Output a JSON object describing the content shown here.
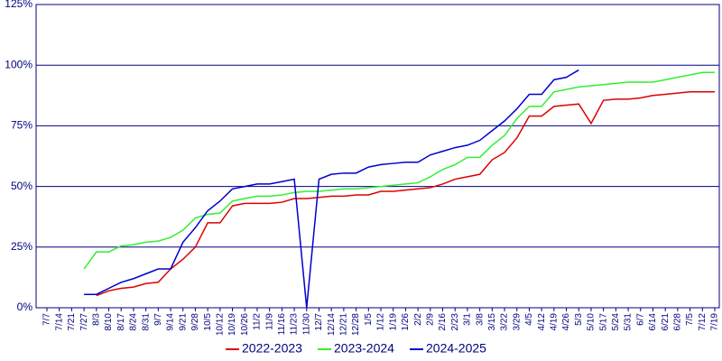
{
  "chart_data": {
    "type": "line",
    "categories": [
      "7/7",
      "7/14",
      "7/21",
      "7/27",
      "8/3",
      "8/10",
      "8/17",
      "8/24",
      "8/31",
      "9/7",
      "9/14",
      "9/21",
      "9/28",
      "10/5",
      "10/12",
      "10/19",
      "10/26",
      "11/2",
      "11/9",
      "11/16",
      "11/23",
      "11/30",
      "12/7",
      "12/14",
      "12/21",
      "12/28",
      "1/5",
      "1/12",
      "1/19",
      "1/26",
      "2/2",
      "2/9",
      "2/16",
      "2/23",
      "3/1",
      "3/8",
      "3/15",
      "3/22",
      "3/29",
      "4/5",
      "4/12",
      "4/19",
      "4/26",
      "5/3",
      "5/10",
      "5/17",
      "5/24",
      "5/31",
      "6/7",
      "6/14",
      "6/21",
      "6/28",
      "7/5",
      "7/12",
      "7/19"
    ],
    "series": [
      {
        "name": "2022-2023",
        "color": "#dd0000",
        "values": [
          null,
          null,
          null,
          null,
          5,
          7,
          8,
          8.5,
          10,
          10.5,
          16,
          20,
          25,
          35,
          35,
          42,
          43,
          43,
          43,
          43.5,
          45,
          45,
          45.5,
          46,
          46,
          46.5,
          46.5,
          48,
          48,
          48.5,
          49,
          49.5,
          51,
          53,
          54,
          55,
          61,
          64,
          70,
          79,
          79,
          83,
          83.5,
          84,
          76,
          85.5,
          86,
          86,
          86.5,
          87.5,
          88,
          88.5,
          89,
          89,
          89
        ]
      },
      {
        "name": "2023-2024",
        "color": "#33ee33",
        "values": [
          null,
          null,
          null,
          16,
          23,
          23,
          25.5,
          26,
          27,
          27.5,
          29,
          32,
          37,
          38.5,
          39,
          44,
          45,
          46,
          46,
          46.5,
          47.5,
          48,
          48,
          48.5,
          49,
          49,
          49.5,
          50,
          50.5,
          51,
          51.5,
          54,
          57,
          59,
          62,
          62,
          67,
          71,
          78,
          83,
          83,
          89,
          90,
          91,
          91.5,
          92,
          92.5,
          93,
          93,
          93,
          94,
          95,
          96,
          97,
          97
        ]
      },
      {
        "name": "2024-2025",
        "color": "#0000cc",
        "values": [
          null,
          null,
          null,
          5.5,
          5.5,
          8,
          10.5,
          12,
          14,
          16,
          16,
          27,
          33,
          40,
          44,
          49,
          50,
          51,
          51,
          52,
          53,
          0,
          53,
          55,
          55.5,
          55.5,
          58,
          59,
          59.5,
          60,
          60,
          63,
          64.5,
          66,
          67,
          69,
          73,
          77,
          82,
          88,
          88,
          94,
          95,
          98,
          null,
          null,
          null,
          null,
          null,
          null,
          null,
          null,
          null,
          null,
          null
        ]
      }
    ],
    "ylim": [
      0,
      125
    ],
    "yticks": [
      {
        "value": 0,
        "label": "0%"
      },
      {
        "value": 25,
        "label": "25%"
      },
      {
        "value": 50,
        "label": "50%"
      },
      {
        "value": 75,
        "label": "75%"
      },
      {
        "value": 100,
        "label": "100%"
      },
      {
        "value": 125,
        "label": "125%"
      }
    ],
    "grid": true,
    "legend": "bottom"
  }
}
